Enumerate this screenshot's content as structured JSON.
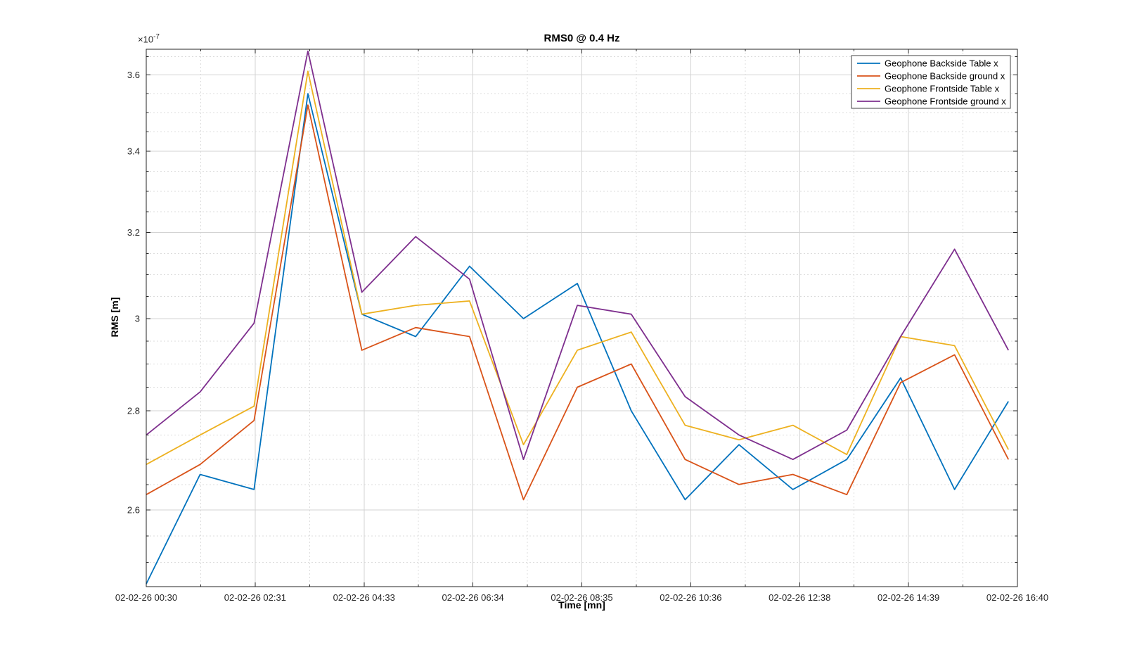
{
  "figure": {
    "title": "RMS0 @ 0.4 Hz",
    "xlabel": "Time [mn]",
    "ylabel": "RMS [m]",
    "y_multiplier": "×10",
    "y_exponent": "-7"
  },
  "chart_data": {
    "type": "line",
    "title": "RMS0 @ 0.4 Hz",
    "xlabel": "Time [mn]",
    "ylabel": "RMS [m]",
    "y_scale": "log",
    "values_unit": "1e-7 m",
    "x_range_minutes": [
      0,
      970
    ],
    "ylim": [
      2.455,
      3.67
    ],
    "x_minutes": [
      0,
      60,
      120,
      180,
      240,
      300,
      360,
      420,
      480,
      540,
      600,
      660,
      720,
      780,
      840,
      900,
      960
    ],
    "x_tick_minutes": [
      0,
      121.25,
      242.5,
      363.75,
      485,
      606.25,
      727.5,
      848.75,
      970
    ],
    "x_tick_labels": [
      "02-02-26 00:30",
      "02-02-26 02:31",
      "02-02-26 04:33",
      "02-02-26 06:34",
      "02-02-26 08:35",
      "02-02-26 10:36",
      "02-02-26 12:38",
      "02-02-26 14:39",
      "02-02-26 16:40"
    ],
    "x_minor_tick_minutes": [
      60.625,
      181.875,
      303.125,
      424.375,
      545.625,
      666.875,
      788.125,
      909.375
    ],
    "y_major_ticks": [
      {
        "value": 2.6,
        "label": "2.6"
      },
      {
        "value": 2.8,
        "label": "2.8"
      },
      {
        "value": 3.0,
        "label": "3"
      },
      {
        "value": 3.2,
        "label": "3.2"
      },
      {
        "value": 3.4,
        "label": "3.4"
      },
      {
        "value": 3.6,
        "label": "3.6"
      }
    ],
    "y_minor_start": 2.5,
    "y_minor_step": 0.05,
    "grid": {
      "major": true,
      "minor": true
    },
    "legend_position": "northeast",
    "series": [
      {
        "name": "Geophone Backside Table x",
        "color": "#0072BD",
        "values": [
          2.46,
          2.67,
          2.64,
          3.55,
          3.01,
          2.96,
          3.12,
          3.0,
          3.08,
          2.8,
          2.62,
          2.73,
          2.64,
          2.7,
          2.87,
          2.64,
          2.82
        ]
      },
      {
        "name": "Geophone Backside ground x",
        "color": "#D95319",
        "values": [
          2.63,
          2.69,
          2.78,
          3.52,
          2.93,
          2.98,
          2.96,
          2.62,
          2.85,
          2.9,
          2.7,
          2.65,
          2.67,
          2.63,
          2.86,
          2.92,
          2.7
        ]
      },
      {
        "name": "Geophone Frontside Table x",
        "color": "#EDB120",
        "values": [
          2.69,
          2.75,
          2.81,
          3.61,
          3.01,
          3.03,
          3.04,
          2.73,
          2.93,
          2.97,
          2.77,
          2.74,
          2.77,
          2.71,
          2.96,
          2.94,
          2.72
        ]
      },
      {
        "name": "Geophone Frontside ground x",
        "color": "#7E2F8E",
        "values": [
          2.75,
          2.84,
          2.99,
          3.665,
          3.06,
          3.19,
          3.09,
          2.7,
          3.03,
          3.01,
          2.83,
          2.75,
          2.7,
          2.76,
          2.96,
          3.16,
          2.93
        ]
      }
    ],
    "style": {
      "axis_color": "#262626",
      "tick_label_color": "#262626",
      "major_grid_color": "#d3d3d3",
      "minor_grid_color": "#dcdcdc",
      "legend_border_color": "#404040",
      "background": "#ffffff"
    }
  }
}
